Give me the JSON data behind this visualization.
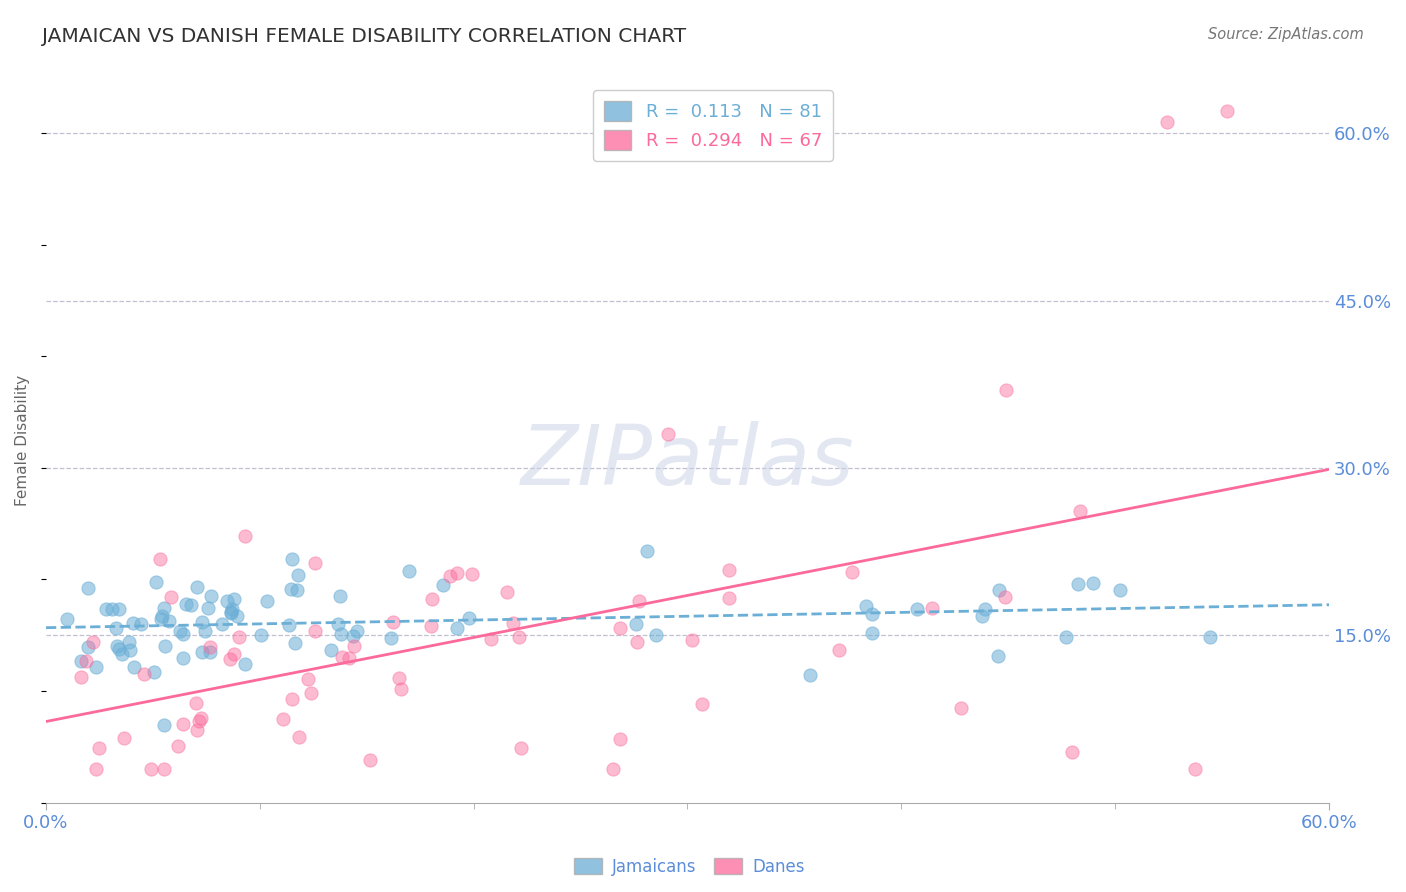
{
  "title": "JAMAICAN VS DANISH FEMALE DISABILITY CORRELATION CHART",
  "source": "Source: ZipAtlas.com",
  "ylabel": "Female Disability",
  "xlim": [
    0.0,
    0.6
  ],
  "ylim": [
    0.0,
    0.65
  ],
  "yticks": [
    0.15,
    0.3,
    0.45,
    0.6
  ],
  "ytick_labels": [
    "15.0%",
    "30.0%",
    "45.0%",
    "60.0%"
  ],
  "legend_entries": [
    {
      "label": "R =  0.113   N = 81",
      "color": "#6baed6"
    },
    {
      "label": "R =  0.294   N = 67",
      "color": "#fb6a9a"
    }
  ],
  "jamaicans_color": "#6baed6",
  "danes_color": "#fb6a9a",
  "jamaicans_N": 81,
  "danes_N": 67,
  "watermark": "ZIPatlas",
  "background_color": "#ffffff",
  "grid_color": "#c0c0d0",
  "title_color": "#333333",
  "axis_label_color": "#666666",
  "tick_label_color": "#5b8dd9",
  "source_color": "#777777"
}
